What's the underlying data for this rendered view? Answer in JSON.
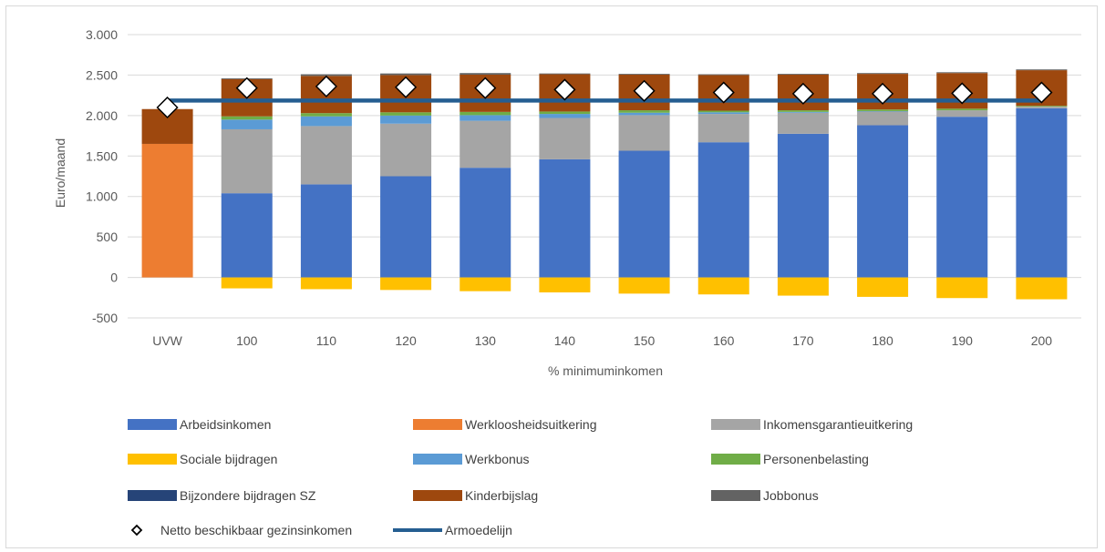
{
  "chart_data": {
    "type": "bar",
    "stacked": true,
    "categories": [
      "UVW",
      "100",
      "110",
      "120",
      "130",
      "140",
      "150",
      "160",
      "170",
      "180",
      "190",
      "200"
    ],
    "xlabel": "% minimuminkomen",
    "ylabel": "Euro/maand",
    "ylim": [
      -500,
      3000
    ],
    "yticks": [
      -500,
      0,
      500,
      1000,
      1500,
      2000,
      2500,
      3000
    ],
    "ytick_labels": [
      "-500",
      "0",
      "500",
      "1.000",
      "1.500",
      "2.000",
      "2.500",
      "3.000"
    ],
    "grid": true,
    "legend_position": "bottom",
    "series": [
      {
        "name": "Arbeidsinkomen",
        "color": "#4472c4",
        "values": [
          0,
          1040,
          1150,
          1250,
          1355,
          1460,
          1565,
          1670,
          1775,
          1880,
          1985,
          2090
        ]
      },
      {
        "name": "Werkloosheidsuitkering",
        "color": "#ed7d31",
        "values": [
          1650,
          0,
          0,
          0,
          0,
          0,
          0,
          0,
          0,
          0,
          0,
          0
        ]
      },
      {
        "name": "Inkomensgarantieuitkering",
        "color": "#a5a5a5",
        "values": [
          0,
          790,
          720,
          650,
          580,
          510,
          440,
          350,
          260,
          170,
          80,
          20
        ]
      },
      {
        "name": "Sociale bijdragen",
        "color": "#ffc000",
        "values": [
          0,
          -135,
          -145,
          -155,
          -170,
          -185,
          -200,
          -210,
          -225,
          -240,
          -255,
          -270
        ]
      },
      {
        "name": "Werkbonus",
        "color": "#5b9bd5",
        "values": [
          0,
          120,
          120,
          100,
          70,
          50,
          30,
          20,
          10,
          5,
          0,
          0
        ]
      },
      {
        "name": "Personenbelasting",
        "color": "#70ad47",
        "values": [
          0,
          40,
          40,
          40,
          40,
          30,
          30,
          20,
          20,
          20,
          20,
          10
        ]
      },
      {
        "name": "Bijzondere bijdragen SZ",
        "color": "#264478",
        "values": [
          0,
          0,
          0,
          0,
          0,
          0,
          0,
          0,
          0,
          0,
          0,
          0
        ]
      },
      {
        "name": "Kinderbijslag",
        "color": "#9e480e",
        "values": [
          430,
          460,
          460,
          460,
          460,
          460,
          440,
          440,
          440,
          440,
          440,
          440
        ]
      },
      {
        "name": "Jobbonus",
        "color": "#636363",
        "values": [
          0,
          10,
          20,
          20,
          20,
          10,
          10,
          10,
          10,
          10,
          10,
          10
        ]
      }
    ],
    "markers": {
      "name": "Netto beschikbaar gezinsinkomen",
      "values": [
        2100,
        2340,
        2360,
        2350,
        2340,
        2320,
        2305,
        2285,
        2270,
        2270,
        2275,
        2285
      ]
    },
    "line": {
      "name": "Armoedelijn",
      "value": 2185,
      "color": "#255e91"
    },
    "legend": [
      {
        "label": "Arbeidsinkomen",
        "kind": "bar",
        "color": "#4472c4"
      },
      {
        "label": "Werkloosheidsuitkering",
        "kind": "bar",
        "color": "#ed7d31"
      },
      {
        "label": "Inkomensgarantieuitkering",
        "kind": "bar",
        "color": "#a5a5a5"
      },
      {
        "label": "Sociale bijdragen",
        "kind": "bar",
        "color": "#ffc000"
      },
      {
        "label": "Werkbonus",
        "kind": "bar",
        "color": "#5b9bd5"
      },
      {
        "label": "Personenbelasting",
        "kind": "bar",
        "color": "#70ad47"
      },
      {
        "label": "Bijzondere bijdragen SZ",
        "kind": "bar",
        "color": "#264478"
      },
      {
        "label": "Kinderbijslag",
        "kind": "bar",
        "color": "#9e480e"
      },
      {
        "label": "Jobbonus",
        "kind": "bar",
        "color": "#636363"
      },
      {
        "label": "Netto beschikbaar gezinsinkomen",
        "kind": "marker",
        "color": "#000000"
      },
      {
        "label": "Armoedelijn",
        "kind": "line",
        "color": "#255e91"
      }
    ]
  }
}
